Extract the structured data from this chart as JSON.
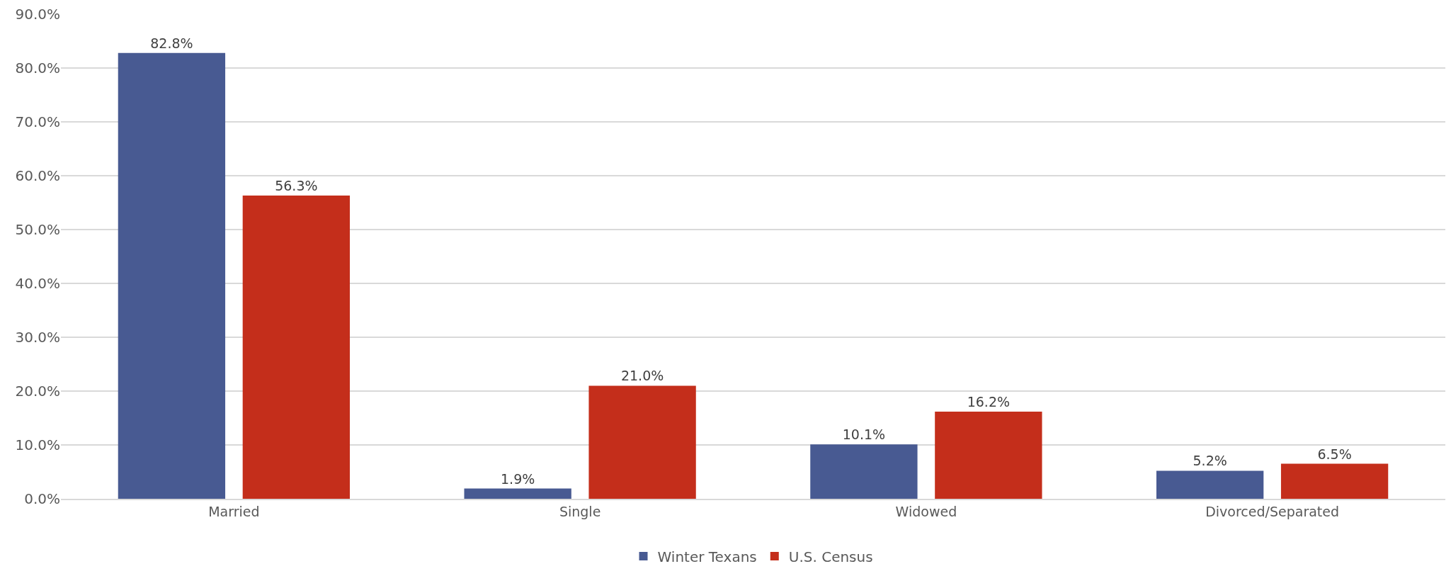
{
  "chart_data": {
    "type": "bar",
    "categories": [
      "Married",
      "Single",
      "Widowed",
      "Divorced/Separated"
    ],
    "series": [
      {
        "name": "Winter Texans",
        "color": "#485a92",
        "values": [
          82.8,
          1.9,
          10.1,
          5.2
        ]
      },
      {
        "name": "U.S. Census",
        "color": "#c42e1b",
        "values": [
          56.3,
          21.0,
          16.2,
          6.5
        ]
      }
    ],
    "ylim": [
      0,
      90
    ],
    "yticks": [
      {
        "value": 0,
        "label": "0.0%"
      },
      {
        "value": 10,
        "label": "10.0%"
      },
      {
        "value": 20,
        "label": "20.0%"
      },
      {
        "value": 30,
        "label": "30.0%"
      },
      {
        "value": 40,
        "label": "40.0%"
      },
      {
        "value": 50,
        "label": "50.0%"
      },
      {
        "value": 60,
        "label": "60.0%"
      },
      {
        "value": 70,
        "label": "70.0%"
      },
      {
        "value": 80,
        "label": "80.0%"
      },
      {
        "value": 90,
        "label": "90.0%"
      }
    ],
    "value_labels": [
      [
        "82.8%",
        "1.9%",
        "10.1%",
        "5.2%"
      ],
      [
        "56.3%",
        "21.0%",
        "16.2%",
        "6.5%"
      ]
    ],
    "grid": "y",
    "legend": "bottom"
  }
}
